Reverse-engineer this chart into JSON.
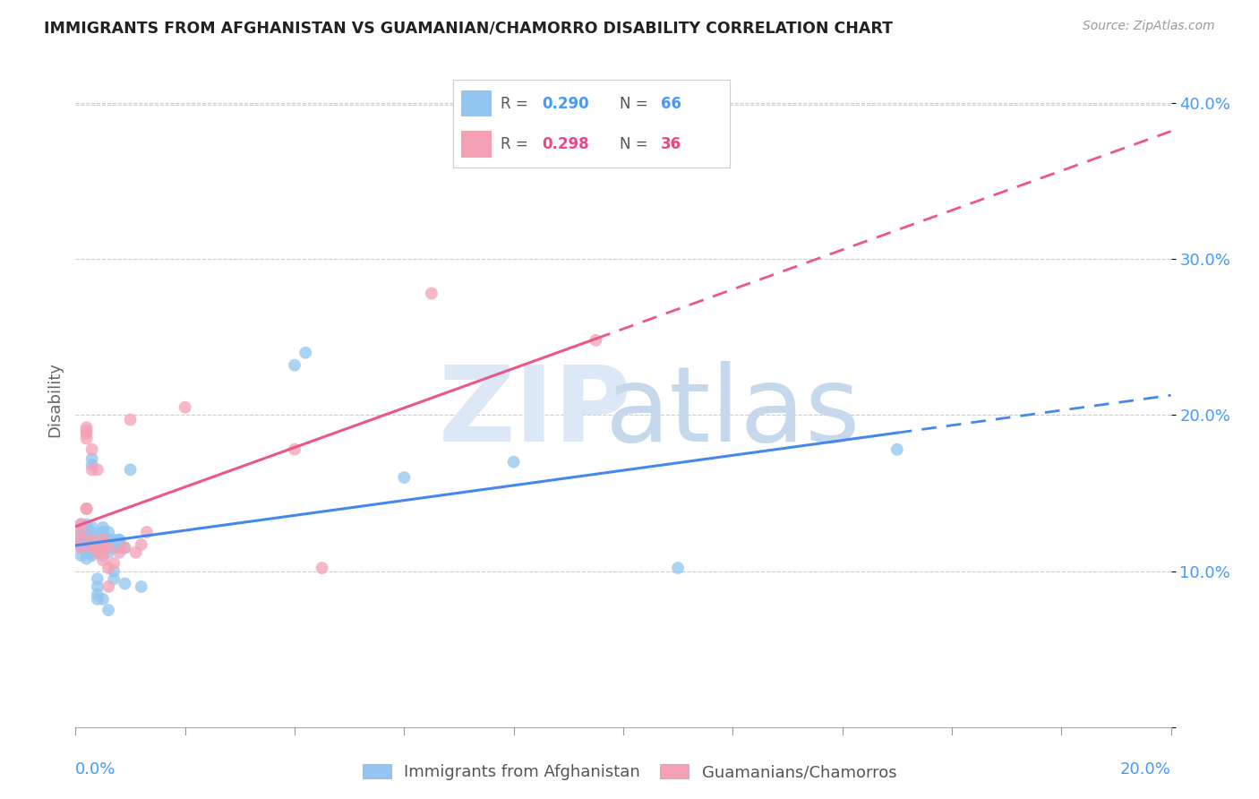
{
  "title": "IMMIGRANTS FROM AFGHANISTAN VS GUAMANIAN/CHAMORRO DISABILITY CORRELATION CHART",
  "source": "Source: ZipAtlas.com",
  "ylabel": "Disability",
  "xmin": 0.0,
  "xmax": 0.2,
  "ymin": 0.0,
  "ymax": 0.42,
  "color_blue": "#92C5F0",
  "color_pink": "#F4A0B5",
  "color_blue_line": "#4488EE",
  "color_pink_line": "#EE5588",
  "color_blue_text": "#4499FF",
  "color_pink_text": "#EE4488",
  "watermark_zip": "#D8E8F4",
  "watermark_atlas": "#C4D8EC",
  "afghanistan_points": [
    [
      0.001,
      0.12
    ],
    [
      0.001,
      0.13
    ],
    [
      0.001,
      0.125
    ],
    [
      0.001,
      0.115
    ],
    [
      0.001,
      0.11
    ],
    [
      0.001,
      0.122
    ],
    [
      0.001,
      0.118
    ],
    [
      0.002,
      0.112
    ],
    [
      0.002,
      0.108
    ],
    [
      0.002,
      0.13
    ],
    [
      0.002,
      0.125
    ],
    [
      0.002,
      0.115
    ],
    [
      0.002,
      0.12
    ],
    [
      0.002,
      0.118
    ],
    [
      0.002,
      0.113
    ],
    [
      0.002,
      0.122
    ],
    [
      0.003,
      0.125
    ],
    [
      0.003,
      0.115
    ],
    [
      0.003,
      0.12
    ],
    [
      0.003,
      0.11
    ],
    [
      0.003,
      0.118
    ],
    [
      0.003,
      0.122
    ],
    [
      0.003,
      0.128
    ],
    [
      0.003,
      0.172
    ],
    [
      0.003,
      0.168
    ],
    [
      0.003,
      0.112
    ],
    [
      0.004,
      0.118
    ],
    [
      0.004,
      0.095
    ],
    [
      0.004,
      0.085
    ],
    [
      0.004,
      0.082
    ],
    [
      0.004,
      0.115
    ],
    [
      0.004,
      0.12
    ],
    [
      0.004,
      0.112
    ],
    [
      0.004,
      0.09
    ],
    [
      0.004,
      0.115
    ],
    [
      0.005,
      0.12
    ],
    [
      0.005,
      0.125
    ],
    [
      0.005,
      0.115
    ],
    [
      0.005,
      0.082
    ],
    [
      0.005,
      0.11
    ],
    [
      0.005,
      0.125
    ],
    [
      0.005,
      0.128
    ],
    [
      0.005,
      0.115
    ],
    [
      0.006,
      0.12
    ],
    [
      0.006,
      0.112
    ],
    [
      0.006,
      0.075
    ],
    [
      0.006,
      0.12
    ],
    [
      0.006,
      0.125
    ],
    [
      0.007,
      0.115
    ],
    [
      0.007,
      0.1
    ],
    [
      0.007,
      0.12
    ],
    [
      0.007,
      0.095
    ],
    [
      0.008,
      0.115
    ],
    [
      0.008,
      0.12
    ],
    [
      0.008,
      0.118
    ],
    [
      0.008,
      0.12
    ],
    [
      0.009,
      0.092
    ],
    [
      0.009,
      0.115
    ],
    [
      0.01,
      0.165
    ],
    [
      0.012,
      0.09
    ],
    [
      0.04,
      0.232
    ],
    [
      0.042,
      0.24
    ],
    [
      0.06,
      0.16
    ],
    [
      0.08,
      0.17
    ],
    [
      0.11,
      0.102
    ],
    [
      0.15,
      0.178
    ]
  ],
  "guamanian_points": [
    [
      0.001,
      0.13
    ],
    [
      0.001,
      0.125
    ],
    [
      0.001,
      0.12
    ],
    [
      0.001,
      0.115
    ],
    [
      0.002,
      0.14
    ],
    [
      0.002,
      0.192
    ],
    [
      0.002,
      0.188
    ],
    [
      0.002,
      0.19
    ],
    [
      0.002,
      0.185
    ],
    [
      0.002,
      0.14
    ],
    [
      0.003,
      0.12
    ],
    [
      0.003,
      0.115
    ],
    [
      0.003,
      0.178
    ],
    [
      0.003,
      0.165
    ],
    [
      0.004,
      0.165
    ],
    [
      0.004,
      0.115
    ],
    [
      0.004,
      0.112
    ],
    [
      0.005,
      0.12
    ],
    [
      0.005,
      0.118
    ],
    [
      0.005,
      0.112
    ],
    [
      0.005,
      0.107
    ],
    [
      0.006,
      0.115
    ],
    [
      0.006,
      0.102
    ],
    [
      0.006,
      0.09
    ],
    [
      0.007,
      0.105
    ],
    [
      0.008,
      0.112
    ],
    [
      0.009,
      0.115
    ],
    [
      0.01,
      0.197
    ],
    [
      0.011,
      0.112
    ],
    [
      0.012,
      0.117
    ],
    [
      0.013,
      0.125
    ],
    [
      0.02,
      0.205
    ],
    [
      0.04,
      0.178
    ],
    [
      0.045,
      0.102
    ],
    [
      0.065,
      0.278
    ],
    [
      0.095,
      0.248
    ]
  ]
}
